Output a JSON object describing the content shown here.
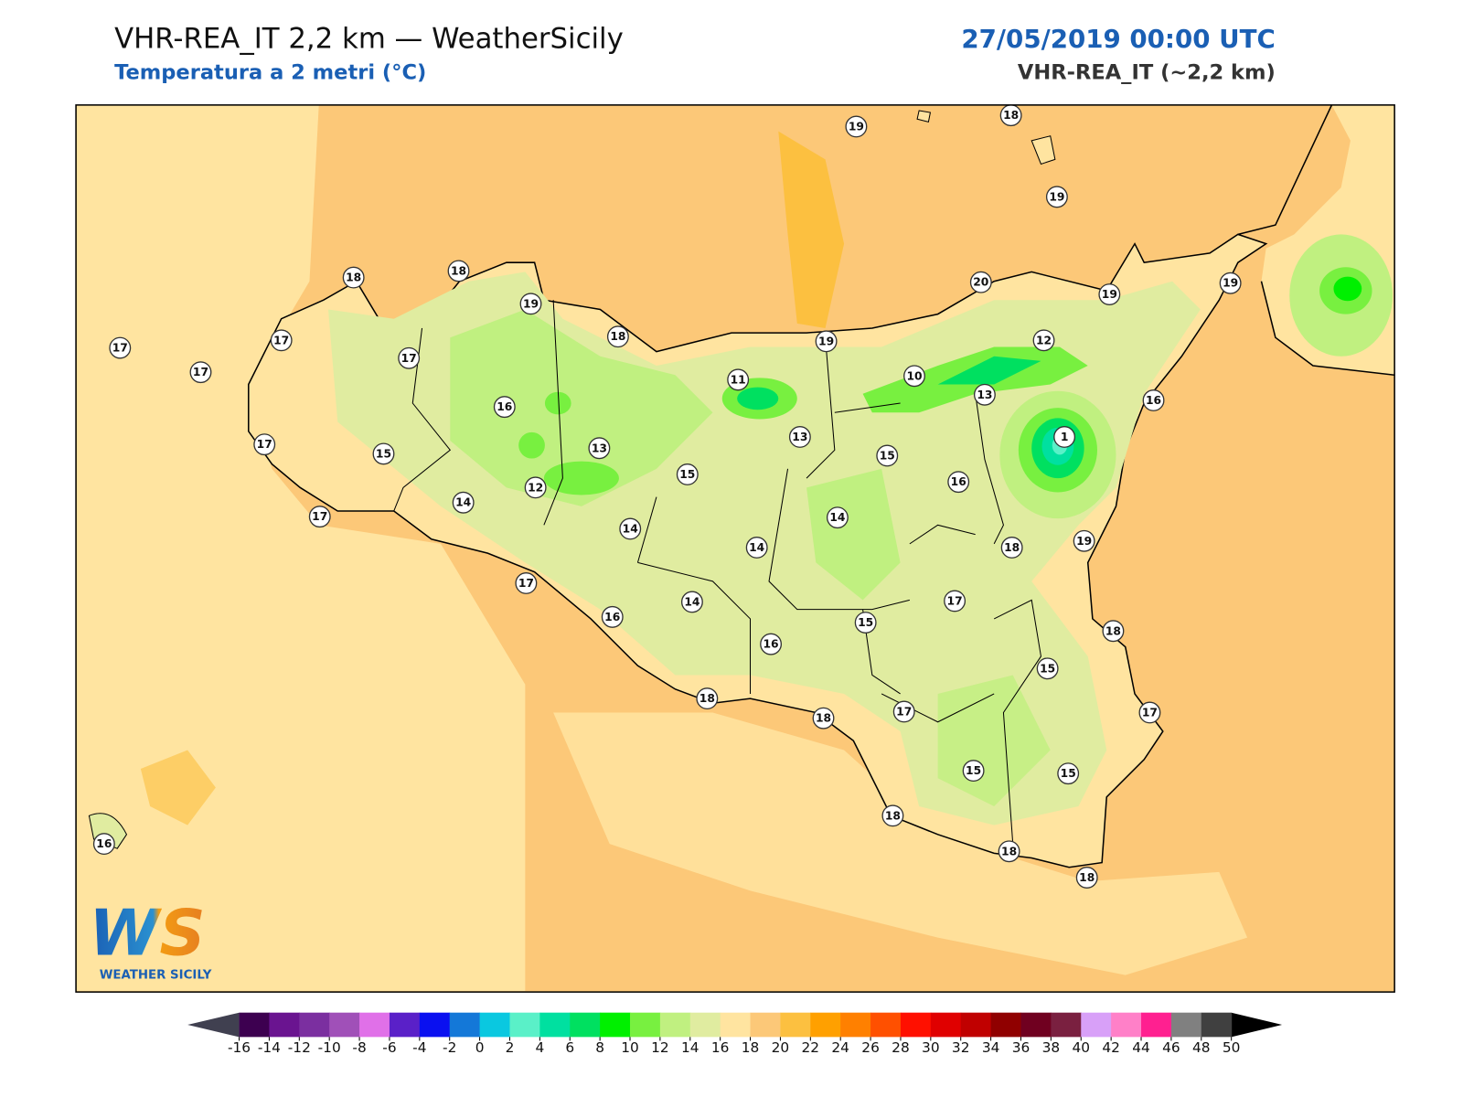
{
  "title": "VHR-REA_IT 2,2 km — WeatherSicily",
  "subtitle": "Temperatura a 2 metri (°C)",
  "datetime": "27/05/2019 00:00 UTC",
  "model": "VHR-REA_IT (~2,2 km)",
  "logo": {
    "mark": "WS",
    "name": "WEATHER SICILY"
  },
  "stations": [
    19,
    18,
    19,
    18,
    18,
    19,
    20,
    19,
    19,
    17,
    17,
    17,
    18,
    19,
    12,
    17,
    11,
    10,
    13,
    16,
    16,
    1,
    13,
    17,
    15,
    13,
    15,
    15,
    16,
    14,
    12,
    14,
    17,
    14,
    14,
    18,
    19,
    17,
    17,
    14,
    16,
    15,
    18,
    16,
    15,
    18,
    18,
    17,
    17,
    15,
    15,
    18,
    16,
    18,
    18
  ],
  "colorbar": {
    "ticks": [
      -16,
      -14,
      -12,
      -10,
      -8,
      -6,
      -4,
      -2,
      0,
      2,
      4,
      6,
      8,
      10,
      12,
      14,
      16,
      18,
      20,
      22,
      24,
      26,
      28,
      30,
      32,
      34,
      36,
      38,
      40,
      42,
      44,
      46,
      48,
      50
    ],
    "colors": [
      "#3d0050",
      "#6a1490",
      "#7b2fa0",
      "#a050b8",
      "#e070e8",
      "#5a20c8",
      "#0a10f0",
      "#1478d8",
      "#0ac8e0",
      "#5af0c8",
      "#00e0a0",
      "#00e060",
      "#00f000",
      "#78f040",
      "#c0f080",
      "#e0eca0",
      "#ffe4a0",
      "#fcc878",
      "#fcc040",
      "#ffa000",
      "#ff8000",
      "#ff5000",
      "#ff1000",
      "#e00000",
      "#c00000",
      "#900000",
      "#700020",
      "#7a2040",
      "#d8a0f8",
      "#ff80c8",
      "#ff2090",
      "#808080",
      "#404040"
    ],
    "under_color": "#404050",
    "over_color": "#000000"
  }
}
